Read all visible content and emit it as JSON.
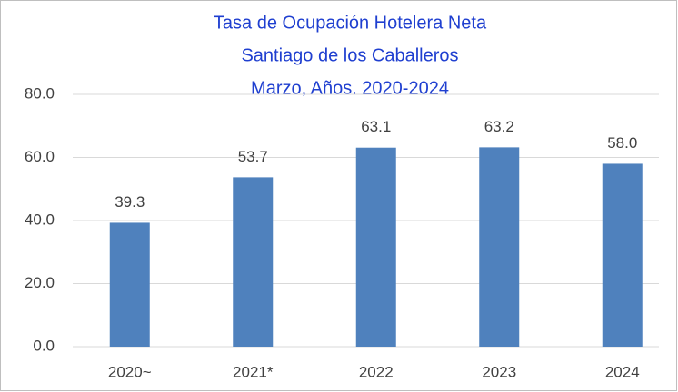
{
  "chart_data": {
    "type": "bar",
    "title": [
      "Tasa de Ocupación Hotelera Neta",
      "Santiago de los Caballeros",
      "Marzo, Años. 2020-2024"
    ],
    "categories": [
      "2020~",
      "2021*",
      "2022",
      "2023",
      "2024"
    ],
    "values": [
      39.3,
      53.7,
      63.1,
      63.2,
      58.0
    ],
    "value_labels": [
      "39.3",
      "53.7",
      "63.1",
      "63.2",
      "58.0"
    ],
    "color": "#4f81bd",
    "ylim": [
      0,
      80
    ],
    "yticks": [
      {
        "value": 0,
        "label": "0.0"
      },
      {
        "value": 20,
        "label": "20.0"
      },
      {
        "value": 40,
        "label": "40.0"
      },
      {
        "value": 60,
        "label": "60.0"
      },
      {
        "value": 80,
        "label": "80.0"
      }
    ],
    "grid": true
  }
}
